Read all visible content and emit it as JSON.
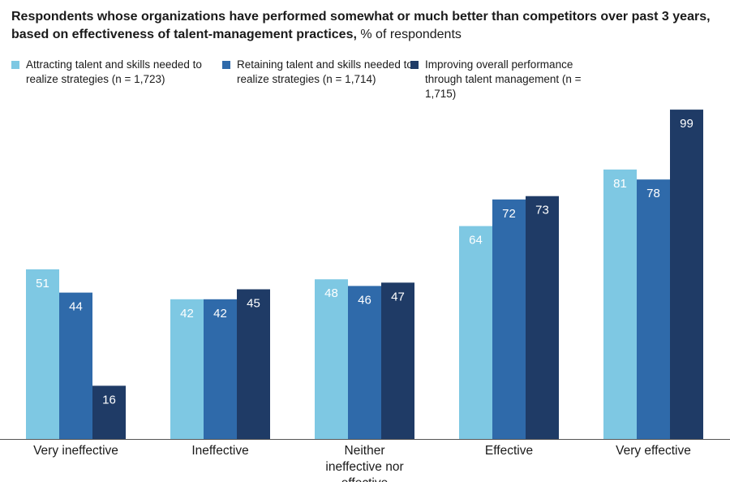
{
  "title": {
    "bold": "Respondents whose organizations have performed somewhat or much better than competitors over past 3 years,  based on effectiveness of talent-management practices,",
    "unit": "% of respondents"
  },
  "colors": {
    "series": [
      "#7ec8e3",
      "#2f6aaa",
      "#1f3b66"
    ],
    "axis": "#555555"
  },
  "legend": [
    {
      "label": "Attracting talent and skills needed to realize strategies  (n = 1,723)"
    },
    {
      "label": "Retaining talent and skills needed to realize strategies  (n = 1,714)"
    },
    {
      "label": "Improving overall performance through talent management  (n = 1,715)"
    }
  ],
  "chart_data": {
    "type": "bar",
    "categories": [
      "Very ineffective",
      "Ineffective",
      "Neither ineffective nor effective",
      "Effective",
      "Very effective"
    ],
    "series": [
      {
        "name": "Attracting talent and skills needed to realize strategies  (n = 1,723)",
        "values": [
          51,
          42,
          48,
          64,
          81
        ]
      },
      {
        "name": "Retaining talent and skills needed to realize strategies  (n = 1,714)",
        "values": [
          44,
          42,
          46,
          72,
          78
        ]
      },
      {
        "name": "Improving overall performance through talent management  (n = 1,715)",
        "values": [
          16,
          45,
          47,
          73,
          99
        ]
      }
    ],
    "ylim": [
      0,
      100
    ],
    "data_labels": true,
    "grid": false,
    "legend_position": "top"
  }
}
